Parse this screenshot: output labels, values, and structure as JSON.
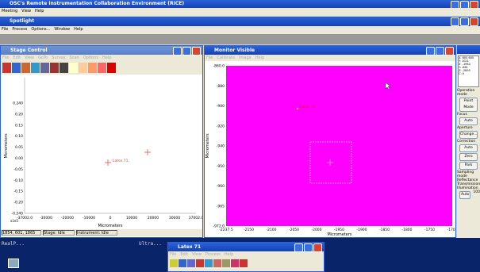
{
  "app": {
    "title": "OSC's Remote Instrumentation Collaboration Environment (RICE)",
    "menu": [
      "Meeting",
      "View",
      "Help"
    ]
  },
  "spotlight": {
    "title": "Spotlight",
    "menu": [
      "File",
      "Process",
      "Options...",
      "Window",
      "Help"
    ]
  },
  "stage": {
    "title": "Stage Control",
    "menu": [
      "File",
      "Edit",
      "View",
      "GoTo",
      "Survey",
      "Scan",
      "Options",
      "Help"
    ],
    "plot": {
      "yticks": [
        "0.240",
        "0.20",
        "0.15",
        "0.10",
        "0.05",
        "0.00",
        "-0.05",
        "-0.10",
        "-0.15",
        "-0.20",
        "-0.240"
      ],
      "xticks": [
        "-37002.0",
        "-30000",
        "-20000",
        "-10000",
        "0",
        "10000",
        "20000",
        "30000",
        "37002.0"
      ],
      "x_scale": "x1e5",
      "x_label": "Micrometers",
      "y_label": "Micrometers",
      "annotation": "Latex 71"
    },
    "status": [
      "1854, 601, 1865",
      "Stage: Idle",
      "Instrument: Idle"
    ]
  },
  "monitor": {
    "title": "Monitor Visible",
    "menu": [
      "File",
      "Calibrate",
      "Image",
      "Help"
    ],
    "plot": {
      "yticks": [
        "-860.0",
        "-880",
        "-900",
        "-920",
        "-940",
        "-950",
        "-960",
        "-965",
        "-972.0"
      ],
      "xticks": [
        "-2237.5",
        "-2150",
        "-2100",
        "-2050",
        "-2000",
        "-1950",
        "-1900",
        "-1850",
        "-1800",
        "-1750",
        "-1700"
      ],
      "x_label": "Micrometers",
      "y_label": "Micrometers",
      "annotation": "Latex 71"
    }
  },
  "controls": {
    "readout": [
      "X: 600.600",
      "Y: 1021",
      "X: -1984",
      "Y: -881",
      "Z: -2895",
      "C: 0"
    ],
    "operation_label": "Operation mode",
    "operation_value": "Point Mode",
    "focus_label": "Focus",
    "focus_button": "Auto",
    "aperture_label": "Aperture",
    "aperture_button": "Change...",
    "correction_label": "Correction",
    "correction_buttons": [
      "Auto",
      "Zero",
      "Park"
    ],
    "sampling_label": "Sampling mode",
    "sampling_options": [
      "Reflectance",
      "Transmission"
    ],
    "illumination_label": "Illumination",
    "illumination_button": "Auto",
    "illumination_value": "100"
  },
  "desktop": {
    "terminal": "RealP...",
    "other": "Ultra..."
  },
  "latex_window": {
    "title": "Latex 71",
    "menu": [
      "File",
      "Edit",
      "View",
      "Process",
      "Help"
    ]
  }
}
